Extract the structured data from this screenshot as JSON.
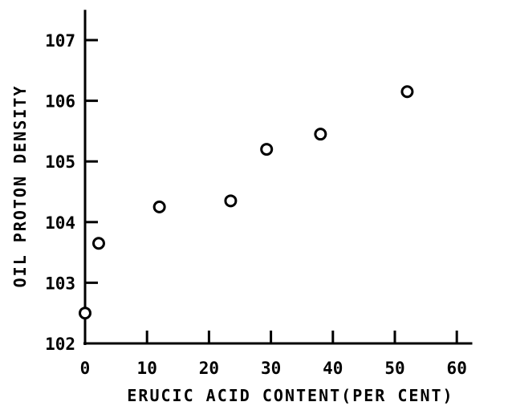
{
  "chart_data": {
    "type": "scatter",
    "title": "",
    "xlabel": "ERUCIC ACID CONTENT(PER CENT)",
    "ylabel": "OIL PROTON DENSITY",
    "xlim": [
      0,
      65
    ],
    "ylim": [
      102,
      107.5
    ],
    "xticks": [
      0,
      10,
      20,
      30,
      40,
      50,
      60
    ],
    "yticks": [
      102,
      103,
      104,
      105,
      106,
      107
    ],
    "xtick_labels": [
      "0",
      "10",
      "20",
      "30",
      "40",
      "50",
      "60"
    ],
    "ytick_labels": [
      "102",
      "103",
      "104",
      "105",
      "106",
      "107"
    ],
    "grid": false,
    "marker": "open-circle",
    "points": [
      {
        "x": 0,
        "y": 102.5
      },
      {
        "x": 2.2,
        "y": 103.65
      },
      {
        "x": 12,
        "y": 104.25
      },
      {
        "x": 23.5,
        "y": 104.35
      },
      {
        "x": 29.3,
        "y": 105.2
      },
      {
        "x": 38,
        "y": 105.45
      },
      {
        "x": 52,
        "y": 106.15
      }
    ]
  }
}
